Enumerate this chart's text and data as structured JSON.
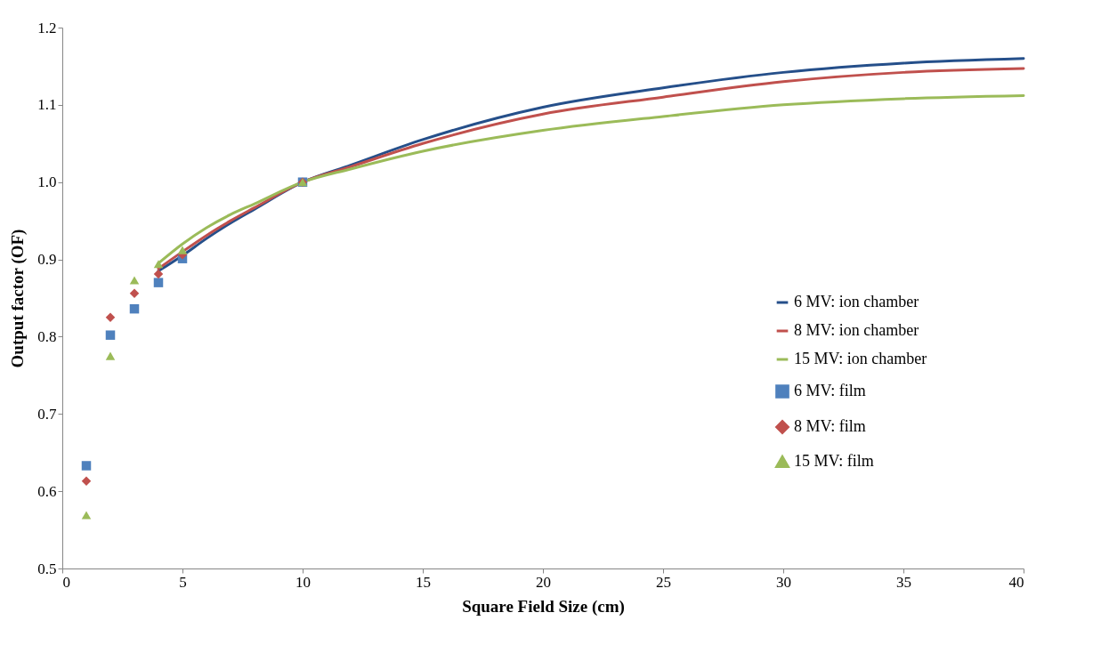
{
  "chart_data": {
    "type": "line",
    "xlabel": "Square Field Size (cm)",
    "ylabel": "Output factor (OF)",
    "xlim": [
      0,
      40
    ],
    "xticks": [
      0,
      5,
      10,
      15,
      20,
      25,
      30,
      35,
      40
    ],
    "ylim": [
      0.5,
      1.2
    ],
    "yticks": [
      0.5,
      0.6,
      0.7,
      0.8,
      0.9,
      {
        "value": 1.0,
        "label": "1.0"
      },
      1.1,
      1.2
    ],
    "grid": false,
    "legend": "right",
    "series": [
      {
        "name": "6 MV: ion chamber",
        "marker": "none",
        "line_style": "solid",
        "color": "#254f8a",
        "x": [
          4,
          5,
          6,
          7,
          8,
          10,
          12,
          15,
          20,
          25,
          30,
          35,
          40
        ],
        "values": [
          0.885,
          0.905,
          0.927,
          0.947,
          0.965,
          1.0,
          1.022,
          1.055,
          1.097,
          1.122,
          1.142,
          1.154,
          1.16
        ]
      },
      {
        "name": "8 MV: ion chamber",
        "marker": "none",
        "line_style": "solid",
        "color": "#c0504d",
        "x": [
          4,
          5,
          6,
          7,
          8,
          10,
          12,
          15,
          20,
          25,
          30,
          35,
          40
        ],
        "values": [
          0.888,
          0.91,
          0.931,
          0.95,
          0.967,
          1.0,
          1.02,
          1.05,
          1.088,
          1.11,
          1.13,
          1.142,
          1.147
        ]
      },
      {
        "name": "15 MV: ion chamber",
        "marker": "none",
        "line_style": "solid",
        "color": "#9bbb59",
        "x": [
          4,
          5,
          6,
          7,
          8,
          10,
          12,
          15,
          20,
          25,
          30,
          35,
          40
        ],
        "values": [
          0.895,
          0.92,
          0.941,
          0.958,
          0.972,
          1.0,
          1.017,
          1.04,
          1.067,
          1.085,
          1.1,
          1.108,
          1.112
        ]
      },
      {
        "name": "6 MV: film",
        "type": "scatter",
        "marker": "square",
        "color": "#4f81bd",
        "x": [
          1,
          2,
          3,
          4,
          5,
          10
        ],
        "values": [
          0.633,
          0.802,
          0.836,
          0.87,
          0.901,
          1.0
        ]
      },
      {
        "name": "8 MV: film",
        "type": "scatter",
        "marker": "diamond",
        "color": "#c0504d",
        "x": [
          1,
          2,
          3,
          4,
          5,
          10
        ],
        "values": [
          0.613,
          0.825,
          0.856,
          0.881,
          0.906,
          1.0
        ]
      },
      {
        "name": "15 MV: film",
        "type": "scatter",
        "marker": "triangle",
        "color": "#9bbb59",
        "x": [
          1,
          2,
          3,
          4,
          5,
          10
        ],
        "values": [
          0.569,
          0.775,
          0.873,
          0.894,
          0.912,
          1.0
        ]
      }
    ]
  }
}
